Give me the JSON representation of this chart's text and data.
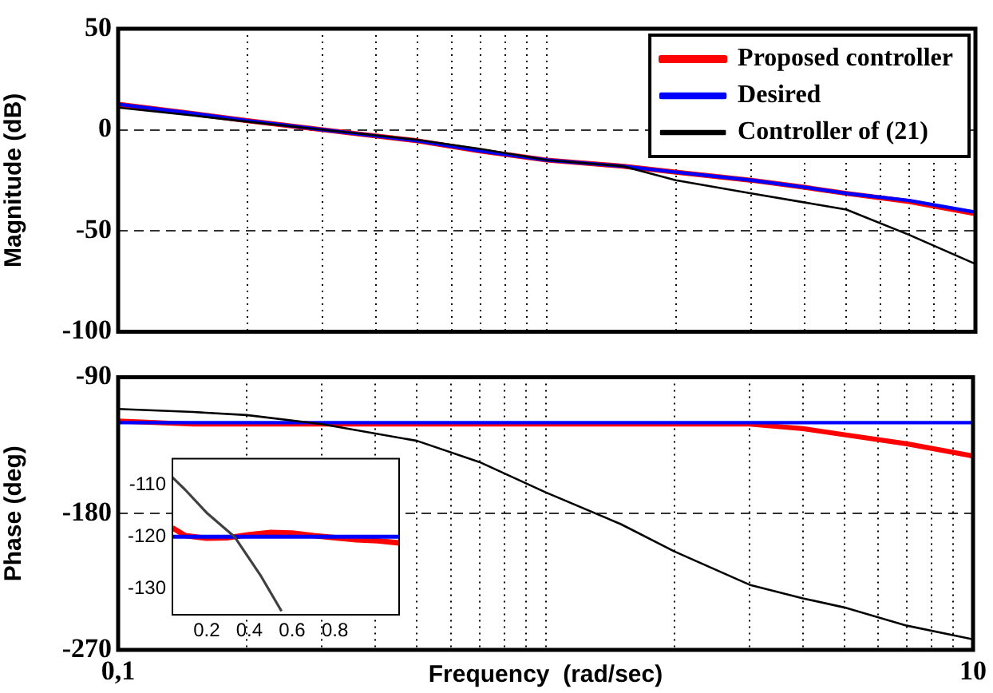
{
  "chart_data": [
    {
      "type": "line",
      "ylabel": "Magnitude (dB)",
      "log": "x",
      "grid": true,
      "legend": "top right",
      "tick_labels": "y",
      "xlim": [
        0.1,
        10
      ],
      "ylim": [
        -100,
        50
      ],
      "xticks": [
        {
          "value": 0.1,
          "label": null
        },
        {
          "value": 0.2,
          "label": null
        },
        {
          "value": 0.3,
          "label": null
        },
        {
          "value": 0.4,
          "label": null
        },
        {
          "value": 0.5,
          "label": null
        },
        {
          "value": 0.6,
          "label": null
        },
        {
          "value": 0.7,
          "label": null
        },
        {
          "value": 0.8,
          "label": null
        },
        {
          "value": 0.9,
          "label": null
        },
        {
          "value": 1,
          "label": null
        },
        {
          "value": 2,
          "label": null
        },
        {
          "value": 3,
          "label": null
        },
        {
          "value": 4,
          "label": null
        },
        {
          "value": 5,
          "label": null
        },
        {
          "value": 6,
          "label": null
        },
        {
          "value": 7,
          "label": null
        },
        {
          "value": 8,
          "label": null
        },
        {
          "value": 9,
          "label": null
        },
        10
      ],
      "yticks": [
        -100,
        -50,
        0,
        50
      ],
      "x": [
        0.1,
        0.15,
        0.2,
        0.3,
        0.5,
        0.7,
        1,
        1.5,
        2,
        3,
        4,
        5,
        7,
        10
      ],
      "series": [
        {
          "name": "Proposed controller",
          "color": "#ff0000",
          "values": [
            12.6,
            8,
            4.5,
            0,
            -5.5,
            -10.5,
            -15,
            -18,
            -21,
            -25,
            -28.5,
            -31.5,
            -35.5,
            -41.6
          ]
        },
        {
          "name": "Desired",
          "color": "#0000ff",
          "values": [
            12.6,
            8,
            4.5,
            0,
            -5.5,
            -10.5,
            -15,
            -18,
            -21,
            -25,
            -28.5,
            -31.5,
            -35,
            -40.8
          ]
        },
        {
          "name": "Controller of (21)",
          "color": "#000000",
          "values": [
            11,
            7,
            4,
            0,
            -5,
            -9.5,
            -15,
            -18,
            -25,
            -31.5,
            -36,
            -39.5,
            -52,
            -66.4
          ]
        }
      ]
    },
    {
      "type": "line",
      "xlabel": "Frequency  (rad/sec)",
      "ylabel": "Phase (deg)",
      "log": "x",
      "grid": true,
      "xlim": [
        0.1,
        10
      ],
      "ylim": [
        -270,
        -90
      ],
      "xticks": [
        {
          "value": 0.1,
          "label": "0,1"
        },
        {
          "value": 0.2,
          "label": null
        },
        {
          "value": 0.3,
          "label": null
        },
        {
          "value": 0.4,
          "label": null
        },
        {
          "value": 0.5,
          "label": null
        },
        {
          "value": 0.6,
          "label": null
        },
        {
          "value": 0.7,
          "label": null
        },
        {
          "value": 0.8,
          "label": null
        },
        {
          "value": 0.9,
          "label": null
        },
        {
          "value": 1,
          "label": null
        },
        {
          "value": 2,
          "label": null
        },
        {
          "value": 3,
          "label": null
        },
        {
          "value": 4,
          "label": null
        },
        {
          "value": 5,
          "label": null
        },
        {
          "value": 6,
          "label": null
        },
        {
          "value": 7,
          "label": null
        },
        {
          "value": 8,
          "label": null
        },
        {
          "value": 9,
          "label": null
        },
        10
      ],
      "yticks": [
        -270,
        -180,
        -90
      ],
      "x": [
        0.1,
        0.15,
        0.2,
        0.3,
        0.5,
        0.7,
        1,
        1.5,
        2,
        3,
        4,
        5,
        7,
        10
      ],
      "series": [
        {
          "color": "#ff0000",
          "values": [
            -119,
            -121,
            -121,
            -121,
            -121,
            -121,
            -121,
            -121,
            -121,
            -121,
            -124,
            -128,
            -134,
            -142
          ]
        },
        {
          "color": "#0000ff",
          "values": [
            -120,
            -120,
            -120,
            -120,
            -120,
            -120,
            -120,
            -120,
            -120,
            -120,
            -120,
            -120,
            -120,
            -120
          ]
        },
        {
          "color": "#000000",
          "values": [
            -111,
            -113,
            -115,
            -121,
            -132,
            -146,
            -166,
            -187,
            -205,
            -227,
            -236,
            -242,
            -254,
            -263
          ]
        }
      ]
    },
    {
      "type": "line",
      "xlim": [
        0.04,
        1.1
      ],
      "ylim": [
        -135,
        -105
      ],
      "xticks": [
        0.2,
        0.4,
        0.6,
        0.8
      ],
      "yticks": [
        -130,
        -120,
        -110
      ],
      "series": [
        {
          "color": "#ff0000",
          "x": [
            0.04,
            0.1,
            0.2,
            0.3,
            0.4,
            0.5,
            0.6,
            0.7,
            0.8,
            0.9,
            1.0,
            1.1
          ],
          "values": [
            -118.3,
            -119.8,
            -120.3,
            -120.2,
            -119.6,
            -119.2,
            -119.3,
            -119.8,
            -120.2,
            -120.6,
            -120.8,
            -121.2
          ]
        },
        {
          "color": "#0000ff",
          "x": [
            0.04,
            1.1
          ],
          "values": [
            -120,
            -120
          ]
        },
        {
          "color": "#404040",
          "x": [
            0.04,
            0.1,
            0.2,
            0.33,
            0.45,
            0.55
          ],
          "values": [
            -108.6,
            -111,
            -115.4,
            -120,
            -127.3,
            -134.3
          ]
        }
      ]
    }
  ]
}
